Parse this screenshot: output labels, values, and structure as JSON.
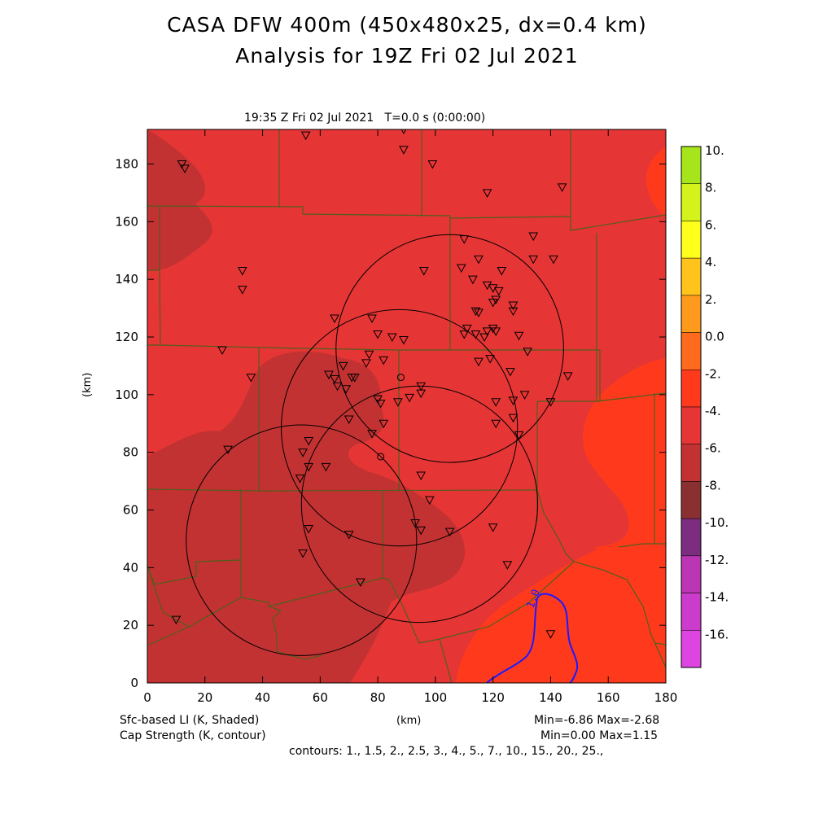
{
  "title_line1": "CASA DFW 400m (450x480x25, dx=0.4 km)",
  "title_line2": "Analysis for 19Z Fri 02 Jul 2021",
  "plot_header": "19:35 Z Fri 02 Jul 2021   T=0.0 s (0:00:00)",
  "x_axis": {
    "label": "(km)",
    "ticks": [
      0,
      20,
      40,
      60,
      80,
      100,
      120,
      140,
      160,
      180
    ],
    "range": [
      0,
      180
    ]
  },
  "y_axis": {
    "label": "(km)",
    "ticks": [
      0,
      20,
      40,
      60,
      80,
      100,
      120,
      140,
      160,
      180
    ],
    "range": [
      0,
      192
    ]
  },
  "footer": {
    "shaded_label": "Sfc-based LI (K, Shaded)",
    "contour_label": "Cap Strength (K, contour)",
    "shaded_minmax": "Min=-6.86 Max=-2.68",
    "contour_minmax": "Min=0.00 Max=1.15",
    "contours": "contours: 1., 1.5, 2., 2.5, 3., 4., 5., 7., 10., 15., 20., 25.,"
  },
  "contour_label_value": "1.0",
  "colorbar": {
    "labels": [
      "10.",
      "8.",
      "6.",
      "4.",
      "2.",
      "0.0",
      "-2.",
      "-4.",
      "-6.",
      "-8.",
      "-10.",
      "-12.",
      "-14.",
      "-16."
    ],
    "colors": [
      "#a6e41c",
      "#d4f21c",
      "#ffff1c",
      "#ffc31c",
      "#ff9a1c",
      "#ff6a1c",
      "#ff3a1c",
      "#e63535",
      "#c33232",
      "#8b3030",
      "#7c2d80",
      "#bb35b4",
      "#cc3ccc",
      "#dd44e0"
    ]
  },
  "colors": {
    "base_field": "#e63535",
    "cool_region": "#c33232",
    "warm_region": "#ff3a1c",
    "county_lines": "#4f5f1c",
    "contour_line": "#1a1aff"
  },
  "radar_circles": [
    {
      "cx": 105,
      "cy": 116,
      "r": 39.5
    },
    {
      "cx": 87.5,
      "cy": 88.5,
      "r": 41
    },
    {
      "cx": 94.5,
      "cy": 62,
      "r": 41
    },
    {
      "cx": 53.5,
      "cy": 49.5,
      "r": 40
    }
  ],
  "stations_km": [
    [
      12,
      180
    ],
    [
      13,
      178.5
    ],
    [
      55,
      190
    ],
    [
      89,
      192
    ],
    [
      89,
      185
    ],
    [
      99,
      180
    ],
    [
      118,
      170
    ],
    [
      144,
      172
    ],
    [
      33,
      143
    ],
    [
      33,
      136.5
    ],
    [
      110,
      154
    ],
    [
      134,
      155
    ],
    [
      115,
      147
    ],
    [
      123,
      143
    ],
    [
      109,
      144
    ],
    [
      96,
      143
    ],
    [
      113,
      140
    ],
    [
      134,
      147
    ],
    [
      141,
      147
    ],
    [
      118,
      138
    ],
    [
      120,
      137
    ],
    [
      122,
      136
    ],
    [
      121,
      133
    ],
    [
      120,
      132
    ],
    [
      127,
      131
    ],
    [
      127,
      129
    ],
    [
      114,
      129
    ],
    [
      115,
      128.5
    ],
    [
      65,
      126.5
    ],
    [
      78,
      126.5
    ],
    [
      80,
      121
    ],
    [
      85,
      120
    ],
    [
      89,
      119
    ],
    [
      110,
      121
    ],
    [
      111,
      123
    ],
    [
      114,
      121
    ],
    [
      118,
      122
    ],
    [
      120,
      123
    ],
    [
      121,
      122
    ],
    [
      117,
      120
    ],
    [
      129,
      120.5
    ],
    [
      132,
      115
    ],
    [
      77,
      114
    ],
    [
      82,
      112
    ],
    [
      119,
      112.5
    ],
    [
      115,
      111.5
    ],
    [
      126,
      108
    ],
    [
      26,
      115.5
    ],
    [
      36,
      106
    ],
    [
      63,
      107
    ],
    [
      65,
      105.5
    ],
    [
      68,
      110
    ],
    [
      66,
      103
    ],
    [
      71,
      106
    ],
    [
      72,
      106
    ],
    [
      69,
      102
    ],
    [
      76,
      111
    ],
    [
      146,
      106.5
    ],
    [
      95,
      103
    ],
    [
      95,
      100.5
    ],
    [
      91,
      99
    ],
    [
      87,
      97.5
    ],
    [
      80,
      98.5
    ],
    [
      81,
      97
    ],
    [
      121,
      97.5
    ],
    [
      127,
      98
    ],
    [
      131,
      100
    ],
    [
      140,
      97.5
    ],
    [
      70,
      91.5
    ],
    [
      127,
      92
    ],
    [
      121,
      90
    ],
    [
      82,
      90
    ],
    [
      129,
      86
    ],
    [
      78,
      86.5
    ],
    [
      56,
      84
    ],
    [
      54,
      80
    ],
    [
      28,
      81
    ],
    [
      56,
      75
    ],
    [
      62,
      75
    ],
    [
      53,
      71
    ],
    [
      95,
      72
    ],
    [
      98,
      63.5
    ],
    [
      56,
      53.5
    ],
    [
      70,
      51.5
    ],
    [
      93,
      55.5
    ],
    [
      95,
      53
    ],
    [
      105,
      52.5
    ],
    [
      120,
      54
    ],
    [
      54,
      45
    ],
    [
      125,
      41
    ],
    [
      74,
      35
    ],
    [
      10,
      22
    ],
    [
      140,
      17
    ]
  ],
  "circle_markers_km": [
    [
      88,
      106
    ],
    [
      81,
      78.5
    ]
  ]
}
